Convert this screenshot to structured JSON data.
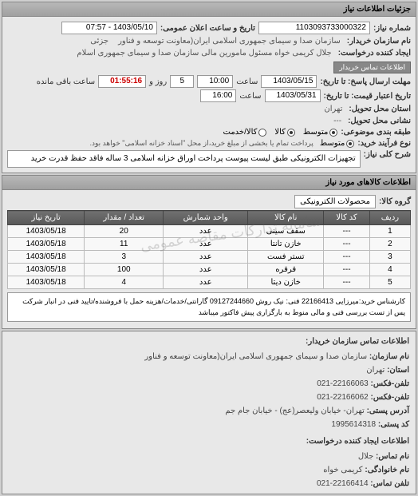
{
  "header": {
    "title": "جزئیات اطلاعات نیاز"
  },
  "need": {
    "numberLabel": "شماره نیاز:",
    "numberValue": "1103093733000322",
    "announceLabel": "تاریخ و ساعت اعلان عمومی:",
    "announceValue": "1403/05/10 - 07:57",
    "buyerNameLabel": "نام سازمان خریدار:",
    "buyerNameValue": "سازمان صدا و سیمای جمهوری اسلامی ایران(معاونت توسعه و فناور",
    "partialLabel": "جزئی",
    "requesterLabel": "ایجاد کننده درخواست:",
    "requesterValue": "جلال کریمی خواه مسئول مامورین مالی  سازمان صدا و سیمای جمهوری اسلام",
    "contactBtnLabel": "اطلاعات تماس خریدار",
    "deadlineSendLabel": "مهلت ارسال پاسخ: تا تاریخ:",
    "deadlineSendDate": "1403/05/15",
    "timeLabel": "ساعت",
    "deadlineSendTime": "10:00",
    "daysLabel": "روز و",
    "daysValue": "5",
    "remainLabel": "ساعت باقی مانده",
    "remainTime": "01:55:16",
    "validityLabel": "تاریخ اعتبار قیمت: تا تاریخ:",
    "validityDate": "1403/05/31",
    "validityTime": "16:00",
    "deliveryPlaceLabel": "استان محل تحویل:",
    "deliveryPlaceValue": "تهران",
    "deliveryAddrLabel": "نشانی محل تحویل:",
    "deliveryAddrValue": "---",
    "budgetTypeLabel": "طبقه بندی موضوعی:",
    "budgetOptions": [
      {
        "label": "متوسط",
        "checked": true
      },
      {
        "label": "کالا",
        "checked": true
      },
      {
        "label": "کالا/خدمت",
        "checked": false
      }
    ],
    "processLabel": "نوع فرآیند خرید:",
    "processOptions": [
      {
        "label": "متوسط",
        "checked": true
      }
    ],
    "processNote": "پرداخت تمام یا بخشی از مبلغ خرید،از محل \"اسناد خزانه اسلامی\" خواهد بود.",
    "descLabel": "شرح کلی نیاز:",
    "descValue": "تجهیزات الکترونیکی  طبق لیست پیوست پرداخت اوراق  خزانه اسلامی 3  ساله فاقد حفظ قدرت خرید"
  },
  "goods": {
    "header": "اطلاعات کالاهای مورد نیاز",
    "groupLabel": "گروه کالا:",
    "groupValue": "محصولات الکترونیکی",
    "columns": [
      "ردیف",
      "کد کالا",
      "نام کالا",
      "واحد شمارش",
      "تعداد / مقدار",
      "تاریخ نیاز"
    ],
    "rows": [
      [
        "1",
        "---",
        "سقف سینی",
        "عدد",
        "20",
        "1403/05/18"
      ],
      [
        "2",
        "---",
        "خازن تانتا",
        "عدد",
        "11",
        "1403/05/18"
      ],
      [
        "3",
        "---",
        "تستر فست",
        "عدد",
        "3",
        "1403/05/18"
      ],
      [
        "4",
        "---",
        "قرقره",
        "عدد",
        "100",
        "1403/05/18"
      ],
      [
        "5",
        "---",
        "خازن دیتا",
        "عدد",
        "4",
        "1403/05/18"
      ]
    ],
    "note": "کارشناس خرید:میرزایی 22166413 فنی: نیک روش 09127244660 گارانتی/خدمات/هزینه حمل با فروشنده/تایید فنی در انبار شرکت پس از تست بررسی فنی و مالی منوط به بارگزاری پیش فاکتور میباشد"
  },
  "contact": {
    "header": "اطلاعات تماس سازمان خریدار:",
    "orgLabel": "نام سازمان:",
    "orgValue": "سازمان صدا و سیمای جمهوری اسلامی ایران(معاونت توسعه و فناور",
    "provinceLabel": "استان:",
    "provinceValue": "تهران",
    "phoneLabel": "تلفن-فکس:",
    "phoneValue": "22166063-021",
    "faxLabel": "تلفن-فکس:",
    "faxValue": "22166062-021",
    "addrLabel": "آدرس پستی:",
    "addrValue": "تهران- خیابان ولیعصر(عج) - خیابان جام جم",
    "postalLabel": "کد پستی:",
    "postalValue": "1995614318",
    "reqHeader": "اطلاعات ایجاد کننده درخواست:",
    "reqNameLabel": "نام تماس:",
    "reqNameValue": "جلال",
    "reqFamilyLabel": "نام خانوادگی:",
    "reqFamilyValue": "کریمی خواه",
    "reqPhoneLabel": "تلفن تماس:",
    "reqPhoneValue": "22166414-021"
  },
  "watermark": "سامانه تدارکات مقاصه عمومی",
  "colors": {
    "headerBg1": "#b8b8b8",
    "headerBg2": "#a0a0a0",
    "thBg1": "#707070",
    "thBg2": "#585858",
    "bodyBg": "#d0d0d0",
    "panelBg": "#e8e8e8",
    "border": "#888888"
  }
}
